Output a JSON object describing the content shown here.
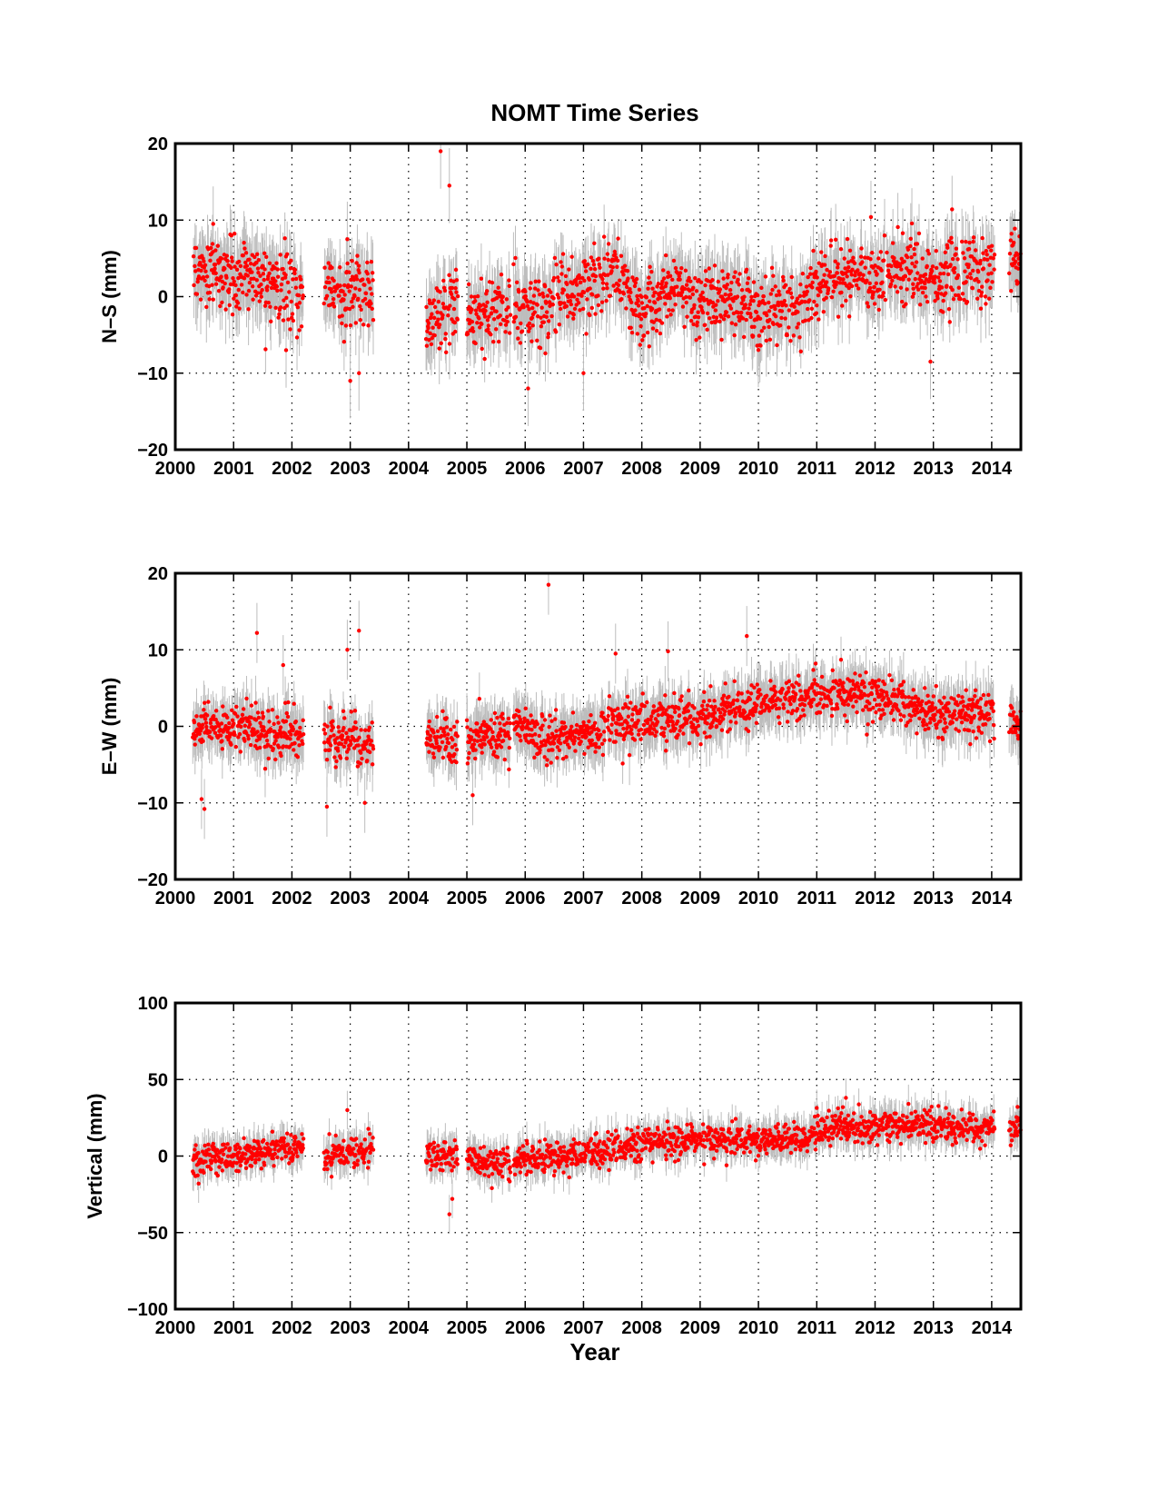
{
  "figure": {
    "title": "NOMT Time Series",
    "xlabel": "Year"
  },
  "chart_data": [
    {
      "type": "scatter",
      "ylabel": "N–S (mm)",
      "xlim": [
        2000,
        2014.5
      ],
      "ylim": [
        -20,
        20
      ],
      "xticks": [
        2000,
        2001,
        2002,
        2003,
        2004,
        2005,
        2006,
        2007,
        2008,
        2009,
        2010,
        2011,
        2012,
        2013,
        2014
      ],
      "yticks": [
        -20,
        -10,
        0,
        10,
        20
      ],
      "ytick_labels": [
        "−20",
        "−10",
        "0",
        "10",
        "20"
      ],
      "grid": true,
      "marker_color": "#ff0000",
      "errorbar_color": "#bdbdbd",
      "data_segments": [
        [
          2000.3,
          2002.2
        ],
        [
          2002.55,
          2003.4
        ],
        [
          2004.3,
          2004.85
        ],
        [
          2005.0,
          2005.75
        ],
        [
          2005.8,
          2014.05
        ],
        [
          2014.3,
          2014.5
        ]
      ],
      "trend": [
        [
          2000.3,
          3.5
        ],
        [
          2001.0,
          2.8
        ],
        [
          2001.6,
          2.3
        ],
        [
          2002.2,
          0.5
        ],
        [
          2002.55,
          2.0
        ],
        [
          2003.0,
          0.0
        ],
        [
          2003.4,
          0.5
        ],
        [
          2004.3,
          -3.0
        ],
        [
          2004.85,
          -1.0
        ],
        [
          2005.0,
          -2.5
        ],
        [
          2005.75,
          -1.5
        ],
        [
          2005.8,
          -2.0
        ],
        [
          2006.3,
          -1.0
        ],
        [
          2006.8,
          0.5
        ],
        [
          2007.5,
          3.5
        ],
        [
          2008.0,
          -2.0
        ],
        [
          2008.5,
          1.5
        ],
        [
          2009.0,
          -1.0
        ],
        [
          2009.5,
          0.0
        ],
        [
          2010.0,
          -2.0
        ],
        [
          2010.5,
          -1.0
        ],
        [
          2011.0,
          1.0
        ],
        [
          2011.5,
          2.0
        ],
        [
          2012.0,
          2.0
        ],
        [
          2012.5,
          3.5
        ],
        [
          2013.0,
          2.5
        ],
        [
          2013.5,
          3.5
        ],
        [
          2014.05,
          3.5
        ],
        [
          2014.3,
          5.0
        ],
        [
          2014.5,
          5.0
        ]
      ],
      "noise": 2.2,
      "error": 3.5,
      "outliers": [
        [
          2000.65,
          9.5
        ],
        [
          2002.95,
          7.5
        ],
        [
          2003.0,
          -11.0
        ],
        [
          2003.15,
          -10.0
        ],
        [
          2004.55,
          19.0
        ],
        [
          2004.7,
          14.5
        ],
        [
          2006.05,
          -12.0
        ],
        [
          2007.0,
          -10.0
        ],
        [
          2012.95,
          -8.5
        ],
        [
          2001.9,
          -7.0
        ]
      ]
    },
    {
      "type": "scatter",
      "ylabel": "E–W (mm)",
      "xlim": [
        2000,
        2014.5
      ],
      "ylim": [
        -20,
        20
      ],
      "xticks": [
        2000,
        2001,
        2002,
        2003,
        2004,
        2005,
        2006,
        2007,
        2008,
        2009,
        2010,
        2011,
        2012,
        2013,
        2014
      ],
      "yticks": [
        -20,
        -10,
        0,
        10,
        20
      ],
      "ytick_labels": [
        "−20",
        "−10",
        "0",
        "10",
        "20"
      ],
      "grid": true,
      "marker_color": "#ff0000",
      "errorbar_color": "#bdbdbd",
      "data_segments": [
        [
          2000.3,
          2002.2
        ],
        [
          2002.55,
          2003.4
        ],
        [
          2004.3,
          2004.85
        ],
        [
          2005.0,
          2005.75
        ],
        [
          2005.8,
          2014.05
        ],
        [
          2014.3,
          2014.5
        ]
      ],
      "trend": [
        [
          2000.3,
          0.0
        ],
        [
          2001.0,
          -0.5
        ],
        [
          2002.2,
          -1.0
        ],
        [
          2002.55,
          -1.5
        ],
        [
          2003.4,
          -2.5
        ],
        [
          2004.3,
          -1.5
        ],
        [
          2004.85,
          -2.0
        ],
        [
          2005.0,
          -2.0
        ],
        [
          2005.75,
          -1.0
        ],
        [
          2005.8,
          0.5
        ],
        [
          2006.3,
          -2.0
        ],
        [
          2007.0,
          -1.0
        ],
        [
          2008.0,
          0.5
        ],
        [
          2009.0,
          1.5
        ],
        [
          2010.0,
          3.0
        ],
        [
          2011.0,
          4.0
        ],
        [
          2011.5,
          4.5
        ],
        [
          2012.0,
          4.0
        ],
        [
          2013.0,
          2.0
        ],
        [
          2014.05,
          1.5
        ],
        [
          2014.3,
          1.0
        ],
        [
          2014.5,
          0.5
        ]
      ],
      "noise": 1.5,
      "error": 2.8,
      "outliers": [
        [
          2000.45,
          -9.5
        ],
        [
          2000.5,
          -10.8
        ],
        [
          2001.4,
          12.2
        ],
        [
          2002.6,
          -10.5
        ],
        [
          2002.95,
          10.0
        ],
        [
          2003.15,
          12.5
        ],
        [
          2003.25,
          -10.0
        ],
        [
          2005.1,
          -9.0
        ],
        [
          2006.4,
          18.5
        ],
        [
          2007.55,
          9.5
        ],
        [
          2008.45,
          9.8
        ],
        [
          2009.8,
          11.8
        ],
        [
          2001.85,
          8.0
        ]
      ]
    },
    {
      "type": "scatter",
      "ylabel": "Vertical (mm)",
      "xlim": [
        2000,
        2014.5
      ],
      "ylim": [
        -100,
        100
      ],
      "xticks": [
        2000,
        2001,
        2002,
        2003,
        2004,
        2005,
        2006,
        2007,
        2008,
        2009,
        2010,
        2011,
        2012,
        2013,
        2014
      ],
      "yticks": [
        -100,
        -50,
        0,
        50,
        100
      ],
      "ytick_labels": [
        "−100",
        "−50",
        "0",
        "50",
        "100"
      ],
      "grid": true,
      "marker_color": "#ff0000",
      "errorbar_color": "#bdbdbd",
      "data_segments": [
        [
          2000.3,
          2002.2
        ],
        [
          2002.55,
          2003.4
        ],
        [
          2004.3,
          2004.85
        ],
        [
          2005.0,
          2005.75
        ],
        [
          2005.8,
          2014.05
        ],
        [
          2014.3,
          2014.5
        ]
      ],
      "trend": [
        [
          2000.3,
          -2.0
        ],
        [
          2001.0,
          0.0
        ],
        [
          2002.2,
          6.0
        ],
        [
          2002.55,
          0.0
        ],
        [
          2003.4,
          4.0
        ],
        [
          2004.3,
          0.0
        ],
        [
          2004.85,
          0.0
        ],
        [
          2005.0,
          0.0
        ],
        [
          2005.75,
          -8.0
        ],
        [
          2005.8,
          -3.0
        ],
        [
          2006.5,
          -3.0
        ],
        [
          2007.0,
          2.0
        ],
        [
          2008.0,
          8.0
        ],
        [
          2009.0,
          11.0
        ],
        [
          2010.0,
          10.0
        ],
        [
          2010.9,
          12.0
        ],
        [
          2011.0,
          19.0
        ],
        [
          2012.0,
          19.0
        ],
        [
          2013.0,
          20.0
        ],
        [
          2014.05,
          17.0
        ],
        [
          2014.3,
          19.0
        ],
        [
          2014.5,
          19.0
        ]
      ],
      "noise": 5.0,
      "error": 9.0,
      "outliers": [
        [
          2002.95,
          30.0
        ],
        [
          2004.7,
          -38.0
        ],
        [
          2004.75,
          -28.0
        ],
        [
          2000.4,
          -18.0
        ],
        [
          2011.5,
          38.0
        ]
      ]
    }
  ]
}
